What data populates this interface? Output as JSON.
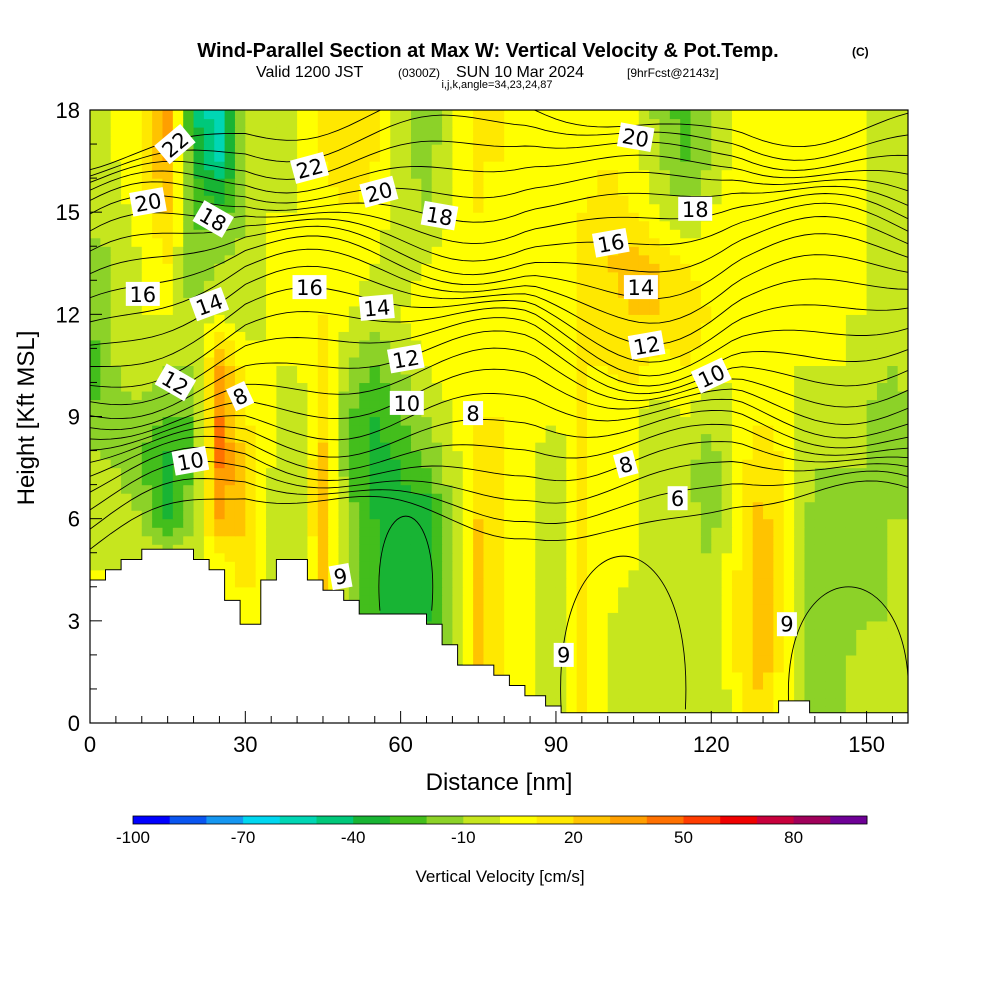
{
  "header": {
    "title_main": "Wind-Parallel Section at Max W: Vertical Velocity & Pot.Temp.",
    "title_unit": "(C)",
    "subtitle_a": "Valid 1200 JST",
    "subtitle_b": "(0300Z)",
    "subtitle_c": "SUN 10 Mar 2024",
    "subtitle_d": "[9hrFcst@2143z]",
    "subtitle_e": "i,j,k,angle=34,23,24,87"
  },
  "chart_data": {
    "type": "heatmap",
    "title": "Wind-Parallel Section at Max W: Vertical Velocity & Pot.Temp. (C)",
    "xlabel": "Distance [nm]",
    "ylabel": "Height [Kft MSL]",
    "xlim": [
      0,
      158
    ],
    "ylim": [
      0,
      18
    ],
    "x_ticks": [
      0,
      30,
      60,
      90,
      120,
      150
    ],
    "y_ticks": [
      0,
      3,
      6,
      9,
      12,
      15,
      18
    ],
    "colorbar": {
      "label": "Vertical Velocity [cm/s]",
      "min": -100,
      "max": 100,
      "step": 10,
      "tick_values": [
        -100,
        -70,
        -40,
        -10,
        20,
        50,
        80
      ],
      "colors": [
        "#0000ff",
        "#0a55f0",
        "#1596f0",
        "#00d7f0",
        "#00d6b4",
        "#00c87a",
        "#18b434",
        "#43be1c",
        "#8cd228",
        "#c6e61e",
        "#ffff00",
        "#ffe800",
        "#ffc300",
        "#ff9f00",
        "#ff7100",
        "#ff3c00",
        "#f00000",
        "#c8003c",
        "#a0005a",
        "#6e0096"
      ]
    },
    "velocity_field": {
      "x": [
        0,
        5,
        10,
        15,
        20,
        25,
        30,
        35,
        40,
        45,
        50,
        55,
        60,
        65,
        70,
        75,
        80,
        85,
        90,
        95,
        100,
        105,
        110,
        115,
        120,
        125,
        130,
        135,
        140,
        145,
        150,
        155,
        158
      ],
      "y": [
        0,
        1.5,
        3,
        4.5,
        6,
        7.5,
        9,
        10.5,
        12,
        13.5,
        15,
        16.5,
        18
      ],
      "w_cm_s": [
        [
          0,
          0,
          0,
          0,
          0,
          0,
          0,
          0,
          0,
          0,
          0,
          0,
          0,
          0,
          0,
          0,
          0,
          0,
          -10,
          10,
          0,
          -5,
          -10,
          -5,
          -10,
          0,
          20,
          0,
          -20,
          -10,
          0,
          -10,
          0
        ],
        [
          0,
          0,
          0,
          0,
          0,
          0,
          0,
          0,
          0,
          0,
          0,
          0,
          0,
          0,
          -20,
          20,
          10,
          0,
          -10,
          10,
          0,
          -5,
          -10,
          -5,
          -10,
          10,
          25,
          0,
          -20,
          -15,
          0,
          -10,
          0
        ],
        [
          0,
          0,
          0,
          0,
          0,
          0,
          0,
          0,
          0,
          20,
          -10,
          -30,
          -30,
          -30,
          -10,
          20,
          10,
          0,
          -10,
          10,
          0,
          -5,
          -10,
          -5,
          -10,
          10,
          25,
          0,
          -20,
          -15,
          -10,
          -10,
          0
        ],
        [
          0,
          0,
          0,
          0,
          0,
          0,
          20,
          -5,
          -10,
          20,
          -10,
          -30,
          -35,
          -40,
          -10,
          20,
          10,
          0,
          -10,
          10,
          5,
          0,
          -10,
          -5,
          -10,
          10,
          25,
          0,
          -20,
          -15,
          -15,
          -10,
          -5
        ],
        [
          -10,
          -5,
          -10,
          -30,
          -10,
          30,
          20,
          -5,
          -10,
          25,
          -15,
          -30,
          -35,
          -40,
          -10,
          20,
          10,
          0,
          -10,
          10,
          5,
          0,
          -10,
          -5,
          -15,
          5,
          25,
          0,
          -15,
          -15,
          -15,
          -10,
          -10
        ],
        [
          -5,
          -10,
          -20,
          -35,
          -20,
          40,
          20,
          0,
          -10,
          25,
          -20,
          -35,
          -30,
          -20,
          -5,
          15,
          10,
          0,
          -10,
          10,
          5,
          0,
          -10,
          -10,
          -15,
          5,
          20,
          5,
          -10,
          -10,
          -10,
          -20,
          -15
        ],
        [
          -20,
          -15,
          -15,
          -20,
          -20,
          40,
          10,
          0,
          -10,
          15,
          -20,
          -30,
          -20,
          -10,
          0,
          10,
          10,
          5,
          0,
          10,
          5,
          0,
          -5,
          0,
          -10,
          0,
          10,
          5,
          -10,
          -5,
          -10,
          -20,
          -10
        ],
        [
          -25,
          -10,
          0,
          -10,
          -10,
          30,
          5,
          0,
          0,
          10,
          -10,
          -20,
          -10,
          0,
          5,
          5,
          5,
          5,
          5,
          10,
          10,
          15,
          5,
          10,
          5,
          0,
          5,
          0,
          0,
          0,
          -5,
          -10,
          -5
        ],
        [
          -20,
          -10,
          0,
          0,
          -10,
          0,
          -5,
          0,
          5,
          10,
          0,
          -5,
          0,
          5,
          10,
          5,
          0,
          5,
          5,
          10,
          15,
          20,
          20,
          15,
          10,
          5,
          5,
          5,
          5,
          0,
          0,
          -5,
          -5
        ],
        [
          -15,
          -10,
          0,
          10,
          -20,
          -10,
          -5,
          0,
          5,
          5,
          5,
          0,
          -5,
          0,
          5,
          5,
          0,
          0,
          5,
          10,
          20,
          25,
          20,
          10,
          5,
          5,
          5,
          5,
          0,
          0,
          0,
          -5,
          -5
        ],
        [
          -5,
          -5,
          5,
          20,
          -20,
          -25,
          -10,
          0,
          0,
          5,
          10,
          5,
          -5,
          -10,
          0,
          10,
          5,
          0,
          5,
          10,
          15,
          10,
          0,
          -10,
          0,
          5,
          10,
          5,
          0,
          0,
          0,
          -5,
          -5
        ],
        [
          -5,
          0,
          10,
          30,
          -30,
          -50,
          -10,
          -10,
          0,
          10,
          20,
          10,
          -5,
          -15,
          0,
          10,
          10,
          5,
          0,
          5,
          10,
          5,
          -10,
          -20,
          -10,
          5,
          10,
          5,
          0,
          0,
          0,
          -5,
          -5
        ],
        [
          -5,
          0,
          10,
          40,
          -40,
          -60,
          -10,
          -10,
          0,
          10,
          20,
          10,
          -5,
          -20,
          0,
          10,
          10,
          5,
          0,
          5,
          10,
          5,
          -15,
          -25,
          -10,
          5,
          10,
          5,
          0,
          0,
          0,
          -5,
          -5
        ]
      ]
    },
    "terrain_profile_kft": [
      [
        0,
        4.2
      ],
      [
        3,
        4.2
      ],
      [
        3,
        4.5
      ],
      [
        6,
        4.5
      ],
      [
        6,
        4.8
      ],
      [
        10,
        4.8
      ],
      [
        10,
        5.1
      ],
      [
        20,
        5.1
      ],
      [
        20,
        4.8
      ],
      [
        23,
        4.8
      ],
      [
        23,
        4.5
      ],
      [
        26,
        4.5
      ],
      [
        26,
        3.6
      ],
      [
        29,
        3.6
      ],
      [
        29,
        2.9
      ],
      [
        33,
        2.9
      ],
      [
        33,
        4.2
      ],
      [
        36,
        4.2
      ],
      [
        36,
        4.8
      ],
      [
        42,
        4.8
      ],
      [
        42,
        4.2
      ],
      [
        45,
        4.2
      ],
      [
        45,
        3.9
      ],
      [
        49,
        3.9
      ],
      [
        49,
        3.6
      ],
      [
        52,
        3.6
      ],
      [
        52,
        3.2
      ],
      [
        65,
        3.2
      ],
      [
        65,
        2.9
      ],
      [
        68,
        2.9
      ],
      [
        68,
        2.3
      ],
      [
        71,
        2.3
      ],
      [
        71,
        1.7
      ],
      [
        78,
        1.7
      ],
      [
        78,
        1.4
      ],
      [
        81,
        1.4
      ],
      [
        81,
        1.1
      ],
      [
        84,
        1.1
      ],
      [
        84,
        0.8
      ],
      [
        88,
        0.8
      ],
      [
        88,
        0.5
      ],
      [
        91,
        0.5
      ],
      [
        91,
        0.3
      ],
      [
        133,
        0.3
      ],
      [
        133,
        0.65
      ],
      [
        139,
        0.65
      ],
      [
        139,
        0.3
      ],
      [
        158,
        0.3
      ]
    ],
    "potential_temperature_contours": {
      "interval_c": 2,
      "levels_c": [
        6,
        8,
        10,
        12,
        14,
        16,
        18,
        20,
        22
      ],
      "labels": [
        {
          "text": "22",
          "x": 16.4,
          "y": 17.0
        },
        {
          "text": "22",
          "x": 42.4,
          "y": 16.3
        },
        {
          "text": "20",
          "x": 11.2,
          "y": 15.3
        },
        {
          "text": "20",
          "x": 55.8,
          "y": 15.6
        },
        {
          "text": "20",
          "x": 105.4,
          "y": 17.2
        },
        {
          "text": "18",
          "x": 23.8,
          "y": 14.8
        },
        {
          "text": "18",
          "x": 67.5,
          "y": 14.9
        },
        {
          "text": "18",
          "x": 116.9,
          "y": 15.1
        },
        {
          "text": "16",
          "x": 10.2,
          "y": 12.6
        },
        {
          "text": "16",
          "x": 42.4,
          "y": 12.8
        },
        {
          "text": "16",
          "x": 100.6,
          "y": 14.1
        },
        {
          "text": "14",
          "x": 23.0,
          "y": 12.3
        },
        {
          "text": "14",
          "x": 55.4,
          "y": 12.2
        },
        {
          "text": "14",
          "x": 106.4,
          "y": 12.8
        },
        {
          "text": "12",
          "x": 16.5,
          "y": 10.0
        },
        {
          "text": "12",
          "x": 61.0,
          "y": 10.7
        },
        {
          "text": "12",
          "x": 107.5,
          "y": 11.1
        },
        {
          "text": "8",
          "x": 29.0,
          "y": 9.6
        },
        {
          "text": "8",
          "x": 74.0,
          "y": 9.1
        },
        {
          "text": "8",
          "x": 103.5,
          "y": 7.6
        },
        {
          "text": "10",
          "x": 19.4,
          "y": 7.7
        },
        {
          "text": "10",
          "x": 61.2,
          "y": 9.4
        },
        {
          "text": "10",
          "x": 120.0,
          "y": 10.2
        },
        {
          "text": "6",
          "x": 48.4,
          "y": 4.3
        },
        {
          "text": "6",
          "x": 91.5,
          "y": 2.0
        },
        {
          "text": "6",
          "x": 113.5,
          "y": 6.6
        },
        {
          "text": "6",
          "x": 134.6,
          "y": 2.9
        }
      ],
      "label_rotation_deg": [
        -40,
        -15,
        -10,
        -15,
        10,
        30,
        10,
        0,
        0,
        0,
        -10,
        -20,
        -5,
        0,
        30,
        -10,
        -10,
        -25,
        0,
        -15,
        -10,
        0,
        -25,
        170,
        180,
        0,
        180
      ]
    }
  }
}
